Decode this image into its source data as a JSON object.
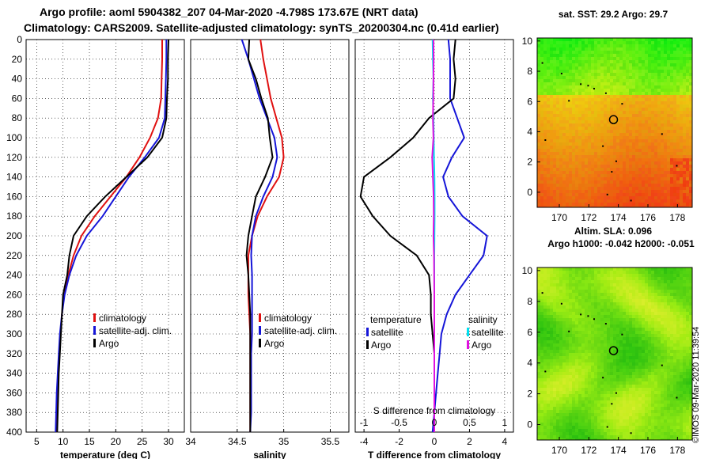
{
  "header": {
    "line1": "Argo profile: aoml 5904382_207 04-Mar-2020 -4.798S 173.67E (NRT data)",
    "line2": "Climatology: CARS2009. Satellite-adjusted climatology: synTS_20200304.nc (0.41d earlier)"
  },
  "stamp": "©IMOS 09-Mar-2020 11:39:54",
  "colors": {
    "climatology": "#e01010",
    "satellite": "#1515d8",
    "argo": "#000000",
    "cyan": "#00e0f0",
    "magenta": "#e010e0"
  },
  "chart_data": [
    {
      "type": "line",
      "id": "temperature",
      "xlabel": "temperature (deg C)",
      "ylabel": "",
      "xlim": [
        3,
        33
      ],
      "ylim": [
        400,
        0
      ],
      "xticks": [
        "5",
        "10",
        "15",
        "20",
        "25",
        "30"
      ],
      "yticks": [
        "0",
        "20",
        "40",
        "60",
        "80",
        "100",
        "120",
        "140",
        "160",
        "180",
        "200",
        "220",
        "240",
        "260",
        "280",
        "300",
        "320",
        "340",
        "360",
        "380",
        "400"
      ],
      "legend": [
        "climatology",
        "satellite-adj. clim.",
        "Argo"
      ],
      "series": [
        {
          "name": "climatology",
          "color": "#e01010",
          "x": [
            28.8,
            28.8,
            28.7,
            28.6,
            28,
            26.5,
            24.5,
            22,
            19,
            16,
            13.5,
            12,
            11,
            10.2,
            9.8,
            9.5,
            9.3,
            9.1,
            8.9,
            8.8,
            8.7
          ],
          "y": [
            0,
            20,
            40,
            60,
            80,
            100,
            120,
            140,
            160,
            180,
            200,
            220,
            240,
            260,
            280,
            300,
            320,
            340,
            360,
            380,
            400
          ]
        },
        {
          "name": "satellite-adj. clim.",
          "color": "#1515d8",
          "x": [
            29.6,
            29.6,
            29.5,
            29.4,
            29.3,
            28.2,
            25.5,
            22.5,
            20,
            17.5,
            14.5,
            12.5,
            11.2,
            10.3,
            9.8,
            9.4,
            9.2,
            9,
            8.8,
            8.7,
            8.6
          ],
          "y": [
            0,
            20,
            40,
            60,
            80,
            100,
            120,
            140,
            160,
            180,
            200,
            220,
            240,
            260,
            280,
            300,
            320,
            340,
            360,
            380,
            400
          ]
        },
        {
          "name": "Argo",
          "color": "#000000",
          "x": [
            30,
            29.9,
            29.9,
            29.7,
            29.6,
            28.8,
            26,
            22,
            18,
            14.5,
            12,
            11.2,
            10.8,
            10,
            9.8,
            9.6,
            9.4,
            9.2,
            9.1,
            9,
            8.9
          ],
          "y": [
            0,
            20,
            40,
            60,
            80,
            100,
            120,
            140,
            160,
            180,
            200,
            220,
            240,
            260,
            280,
            300,
            320,
            340,
            360,
            380,
            400
          ]
        }
      ]
    },
    {
      "type": "line",
      "id": "salinity",
      "xlabel": "salinity",
      "ylabel": "",
      "xlim": [
        34,
        35.7
      ],
      "ylim": [
        400,
        0
      ],
      "xticks": [
        "34",
        "34.5",
        "35",
        "35.5"
      ],
      "legend": [
        "climatology",
        "satellite-adj. clim.",
        "Argo"
      ],
      "series": [
        {
          "name": "climatology",
          "color": "#e01010",
          "x": [
            34.75,
            34.78,
            34.82,
            34.86,
            34.92,
            34.98,
            35.0,
            34.95,
            34.82,
            34.72,
            34.66,
            34.62,
            34.62,
            34.62,
            34.63,
            34.64,
            34.64,
            34.64,
            34.64,
            34.64,
            34.64
          ],
          "y": [
            0,
            20,
            40,
            60,
            80,
            100,
            120,
            140,
            160,
            180,
            200,
            220,
            240,
            260,
            280,
            300,
            320,
            340,
            360,
            380,
            400
          ]
        },
        {
          "name": "satellite-adj. clim.",
          "color": "#1515d8",
          "x": [
            34.55,
            34.62,
            34.68,
            34.74,
            34.82,
            34.9,
            34.93,
            34.88,
            34.78,
            34.7,
            34.66,
            34.65,
            34.66,
            34.66,
            34.66,
            34.66,
            34.65,
            34.65,
            34.65,
            34.65,
            34.64
          ],
          "y": [
            0,
            20,
            40,
            60,
            80,
            100,
            120,
            140,
            160,
            180,
            200,
            220,
            240,
            260,
            280,
            300,
            320,
            340,
            360,
            380,
            400
          ]
        },
        {
          "name": "Argo",
          "color": "#000000",
          "x": [
            34.63,
            34.62,
            34.7,
            34.76,
            34.83,
            34.85,
            34.88,
            34.8,
            34.7,
            34.66,
            34.62,
            34.6,
            34.62,
            34.63,
            34.64,
            34.64,
            34.64,
            34.64,
            34.64,
            34.64,
            34.64
          ],
          "y": [
            0,
            20,
            40,
            60,
            80,
            100,
            120,
            140,
            160,
            180,
            200,
            220,
            240,
            260,
            280,
            300,
            320,
            340,
            360,
            380,
            400
          ]
        }
      ]
    },
    {
      "type": "line",
      "id": "differences",
      "xlabel": "T difference from climatology",
      "top_axis_label": "S difference from climatology",
      "xlim": [
        -4.5,
        4.5
      ],
      "ylim": [
        400,
        0
      ],
      "xticks": [
        "-4",
        "-2",
        "0",
        "2",
        "4"
      ],
      "top_xticks": [
        "-1",
        "-0.5",
        "0",
        "0.5",
        "1"
      ],
      "legend_left_title": "temperature",
      "legend_right_title": "salinity",
      "legend_left": [
        "satellite",
        "Argo"
      ],
      "legend_right": [
        "satellite",
        "Argo"
      ],
      "series": [
        {
          "name": "T satellite",
          "color": "#1515d8",
          "x": [
            0.8,
            0.9,
            0.9,
            0.9,
            1.3,
            1.7,
            1.0,
            0.5,
            0.8,
            1.6,
            3.0,
            2.8,
            2.0,
            1.2,
            0.7,
            0.4,
            0.3,
            0.2,
            0.1,
            0.0,
            -0.1
          ],
          "y": [
            0,
            20,
            40,
            60,
            80,
            100,
            120,
            140,
            160,
            180,
            200,
            220,
            240,
            260,
            280,
            300,
            320,
            340,
            360,
            380,
            400
          ]
        },
        {
          "name": "T Argo",
          "color": "#000000",
          "x": [
            1.2,
            1.1,
            1.2,
            1.1,
            -0.3,
            -1.2,
            -2.5,
            -4.0,
            -4.2,
            -3.5,
            -2.5,
            -1.0,
            -0.3,
            -0.2,
            -0.2,
            -0.1,
            0.0,
            0.0,
            0.0,
            0.0,
            0.0
          ],
          "y": [
            0,
            20,
            40,
            60,
            80,
            100,
            120,
            140,
            160,
            180,
            200,
            220,
            240,
            260,
            280,
            300,
            320,
            340,
            360,
            380,
            400
          ]
        },
        {
          "name": "S satellite",
          "color": "#00e0f0",
          "x": [
            -0.1,
            -0.08,
            -0.05,
            -0.08,
            -0.05,
            -0.03,
            -0.02,
            0.01,
            0.02,
            0.02,
            0.01,
            0.0,
            0.0,
            0.0,
            0.0,
            0.0,
            0.0,
            0.0,
            0.0,
            0.0,
            0.0
          ],
          "y": [
            0,
            20,
            40,
            60,
            80,
            100,
            120,
            140,
            160,
            180,
            200,
            220,
            240,
            260,
            280,
            300,
            320,
            340,
            360,
            380,
            400
          ]
        },
        {
          "name": "S Argo",
          "color": "#e010e0",
          "x": [
            -0.05,
            -0.04,
            -0.05,
            -0.06,
            -0.08,
            -0.05,
            -0.12,
            -0.08,
            -0.04,
            -0.03,
            -0.05,
            -0.02,
            -0.01,
            0.0,
            0.0,
            0.0,
            0.0,
            0.0,
            0.0,
            0.0,
            0.0
          ],
          "y": [
            0,
            20,
            40,
            60,
            80,
            100,
            120,
            140,
            160,
            180,
            200,
            220,
            240,
            260,
            280,
            300,
            320,
            340,
            360,
            380,
            400
          ]
        }
      ]
    },
    {
      "type": "heatmap",
      "id": "sst-map",
      "title": "sat. SST: 29.2 Argo: 29.7",
      "xticks": [
        "170",
        "172",
        "174",
        "176",
        "178"
      ],
      "yticks": [
        "10",
        "8",
        "6",
        "4",
        "2",
        "0"
      ],
      "xlim": [
        168.5,
        179
      ],
      "ylim": [
        -1,
        10.2
      ],
      "marker": {
        "lon": 173.67,
        "lat": 4.8
      }
    },
    {
      "type": "heatmap",
      "id": "sla-map",
      "title": "Altim. SLA: 0.096",
      "subtitle": "Argo h1000: -0.042 h2000: -0.051",
      "xticks": [
        "170",
        "172",
        "174",
        "176",
        "178"
      ],
      "yticks": [
        "10",
        "8",
        "6",
        "4",
        "2",
        "0"
      ],
      "xlim": [
        168.5,
        179
      ],
      "ylim": [
        -1,
        10.2
      ],
      "marker": {
        "lon": 173.67,
        "lat": 4.8
      }
    }
  ]
}
